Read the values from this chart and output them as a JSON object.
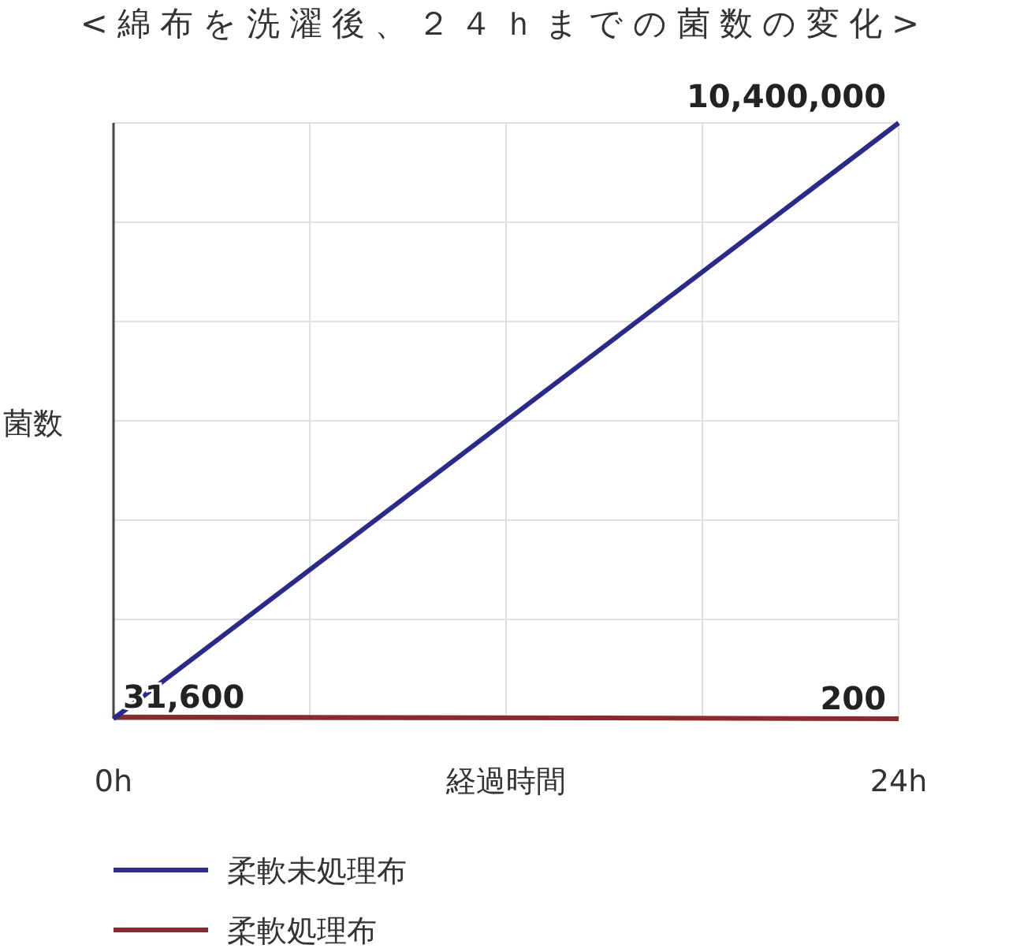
{
  "chart_data": {
    "type": "line",
    "title": "<綿布を洗濯後、２４ｈまでの菌数の変化>",
    "xlabel": "経過時間",
    "ylabel": "菌数",
    "x": [
      0,
      24
    ],
    "series": [
      {
        "name": "柔軟未処理布",
        "color": "#2b2a8a",
        "values": [
          0,
          10400000
        ],
        "value_labels": [
          null,
          "10,400,000"
        ]
      },
      {
        "name": "柔軟処理布",
        "color": "#8b2a2e",
        "values": [
          31600,
          200
        ],
        "value_labels": [
          "31,600",
          "200"
        ]
      }
    ],
    "xlim": [
      0,
      24
    ],
    "xticks": [
      {
        "value": 0,
        "label": "0h"
      },
      {
        "value": 6,
        "label": null
      },
      {
        "value": 12,
        "label": null
      },
      {
        "value": 18,
        "label": null
      },
      {
        "value": 24,
        "label": "24h"
      }
    ],
    "grid": true,
    "legend": "bottom left",
    "marker": "none",
    "line_style": "solid"
  }
}
